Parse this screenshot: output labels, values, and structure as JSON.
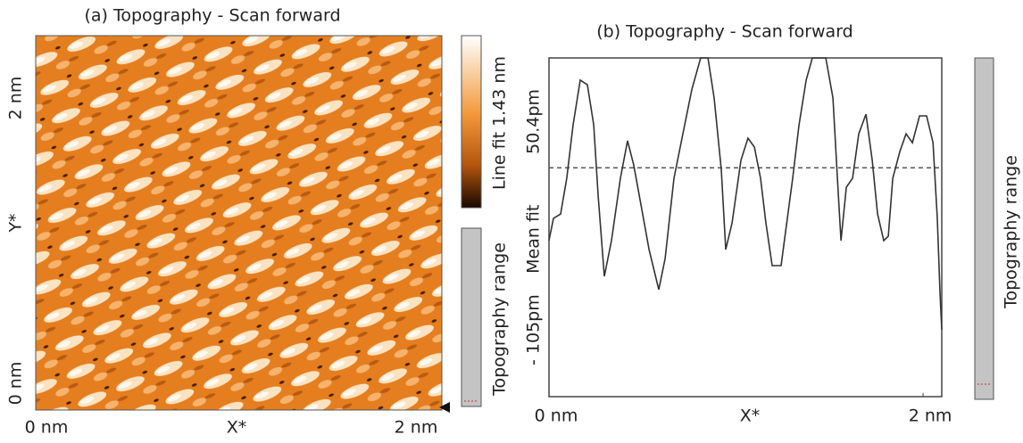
{
  "panel_a": {
    "title": "(a) Topography - Scan forward",
    "x_labels": [
      "0 nm",
      "2 nm"
    ],
    "xlabel": "X*",
    "y_labels": [
      "0 nm",
      "2 nm"
    ],
    "ylabel": "Y*",
    "colorbar_label": "Line fit 1.43 nm",
    "range_label": "Topography range"
  },
  "chart_data": {
    "type": "line",
    "title": "(b) Topography - Scan forward",
    "xlabel": "X*",
    "color": "#333333",
    "x": [
      0,
      0.024,
      0.062,
      0.095,
      0.129,
      0.167,
      0.205,
      0.239,
      0.263,
      0.296,
      0.334,
      0.382,
      0.42,
      0.453,
      0.492,
      0.535,
      0.587,
      0.621,
      0.668,
      0.716,
      0.764,
      0.811,
      0.85,
      0.883,
      0.921,
      0.945,
      0.979,
      1.026,
      1.064,
      1.098,
      1.131,
      1.16,
      1.193,
      1.241,
      1.265,
      1.303,
      1.337,
      1.375,
      1.408,
      1.48,
      1.518,
      1.542,
      1.561,
      1.59,
      1.623,
      1.656,
      1.695,
      1.728,
      1.757,
      1.79,
      1.814,
      1.838,
      1.876,
      1.909,
      1.943,
      1.981,
      2.019,
      2.053,
      2.076,
      2.091,
      2.1
    ],
    "values": [
      -33.4,
      -23.2,
      -21.2,
      -4.8,
      19.7,
      40.2,
      38.1,
      19.7,
      -13.0,
      -49.8,
      -33.4,
      -4.8,
      12.4,
      1.3,
      -17.1,
      -37.5,
      -55.9,
      -41.6,
      -4.8,
      15.6,
      36.1,
      50.4,
      50.4,
      32.0,
      -0.7,
      -37.5,
      -25.3,
      3.4,
      13.6,
      9.5,
      -4.8,
      -25.3,
      -44.9,
      -44.9,
      -29.4,
      -4.8,
      19.7,
      40.2,
      50.4,
      50.4,
      32.0,
      -4.8,
      -33.4,
      -8.9,
      -4.8,
      15.6,
      24.6,
      3.4,
      -21.2,
      -33.4,
      -31.4,
      -4.8,
      7.5,
      15.6,
      11.5,
      23.8,
      23.8,
      11.5,
      -23.2,
      -58.0,
      -74.3
    ],
    "xlim": [
      0,
      2.1
    ],
    "xticks": [
      {
        "value": 0,
        "label": "0 nm"
      },
      {
        "value": 2,
        "label": "2 nm"
      }
    ],
    "ylim": [
      -105,
      50.4
    ],
    "yticks": [
      {
        "value": 50.4,
        "label": "50.4pm"
      },
      {
        "value": -105,
        "label": "- 105pm"
      }
    ],
    "mean_fit": {
      "value": 0,
      "label": "Mean fit"
    },
    "range_label": "Topography range"
  }
}
